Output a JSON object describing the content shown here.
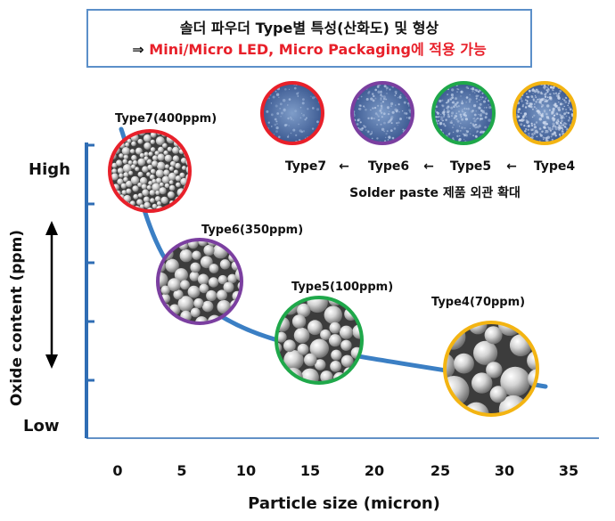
{
  "title": {
    "line1": "솔더 파우더 Type별 특성(산화도) 및 형상",
    "line2_arrow": "⇒ ",
    "line2_highlight": "Mini/Micro LED, Micro Packaging에 적용 가능"
  },
  "y_axis": {
    "label": "Oxide content (ppm)",
    "high_label": "High",
    "low_label": "Low",
    "high_color": "#e8202a",
    "low_color": "#1f6bb4"
  },
  "x_axis": {
    "label": "Particle size (micron)",
    "ticks": [
      "0",
      "5",
      "10",
      "15",
      "20",
      "25",
      "30",
      "35"
    ]
  },
  "curve_color": "#3b7fc4",
  "particles": [
    {
      "label": "Type7(400ppm)",
      "ring_color": "#e8202a",
      "texture": "tiny-spheres-icon"
    },
    {
      "label": "Type6(350ppm)",
      "ring_color": "#7b3fa0",
      "texture": "small-spheres-icon"
    },
    {
      "label": "Type5(100ppm)",
      "ring_color": "#1fa84a",
      "texture": "medium-spheres-icon"
    },
    {
      "label": "Type4(70ppm)",
      "ring_color": "#f3b412",
      "texture": "large-spheres-icon"
    }
  ],
  "paste_samples": {
    "rings": [
      {
        "type": "Type7",
        "ring_color": "#e8202a"
      },
      {
        "type": "Type6",
        "ring_color": "#7b3fa0"
      },
      {
        "type": "Type5",
        "ring_color": "#1fa84a"
      },
      {
        "type": "Type4",
        "ring_color": "#f3b412"
      }
    ],
    "sequence_labels": [
      "Type7",
      "←",
      "Type6",
      "←",
      "Type5",
      "←",
      "Type4"
    ],
    "caption": "Solder paste 제품 외관 확대"
  }
}
